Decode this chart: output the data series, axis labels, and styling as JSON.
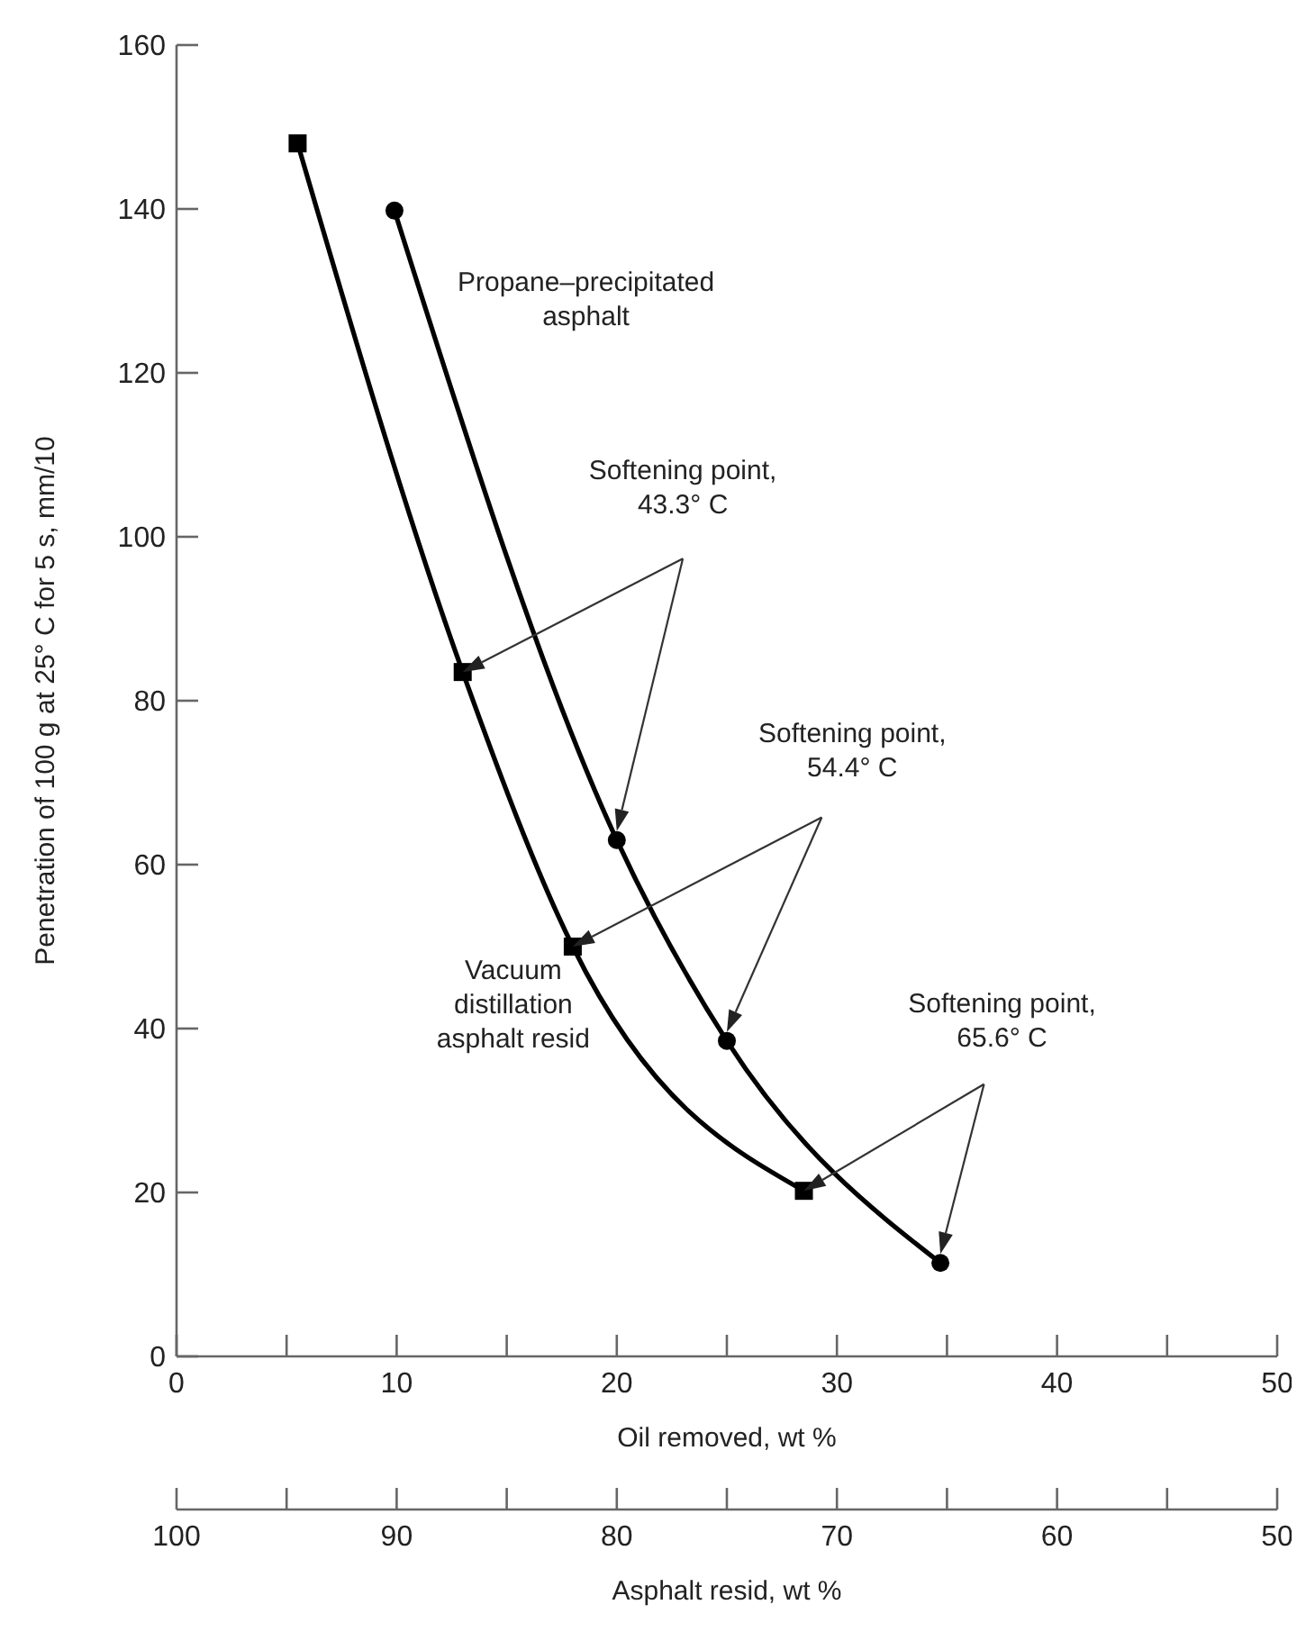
{
  "chart_data": {
    "type": "line",
    "xlabel": "Oil removed, wt %",
    "ylabel": "Penetration of 100 g at 25° C for 5 s, mm/10",
    "x2label": "Asphalt resid, wt %",
    "xlim": [
      0,
      50
    ],
    "xticks": [
      0,
      {
        "value": 5,
        "label": null
      },
      10,
      {
        "value": 15,
        "label": null
      },
      20,
      {
        "value": 25,
        "label": null
      },
      30,
      {
        "value": 35,
        "label": null
      },
      40,
      {
        "value": 45,
        "label": null
      },
      50
    ],
    "x2lim": [
      100,
      50
    ],
    "x2ticks": [
      100,
      {
        "value": 95,
        "label": null
      },
      90,
      {
        "value": 85,
        "label": null
      },
      80,
      {
        "value": 75,
        "label": null
      },
      70,
      {
        "value": 65,
        "label": null
      },
      60,
      {
        "value": 55,
        "label": null
      },
      50
    ],
    "ylim": [
      0,
      160
    ],
    "yticks": [
      0,
      20,
      40,
      60,
      80,
      100,
      120,
      140,
      160
    ],
    "grid": false,
    "line_style": "solid",
    "series": [
      {
        "name": "Propane–precipitated asphalt",
        "color": "#000000",
        "marker": "circle",
        "x": [
          9.9,
          20,
          25,
          34.7
        ],
        "values": [
          139.8,
          63,
          38.5,
          11.4
        ]
      },
      {
        "name": "Vacuum distillation asphalt resid",
        "color": "#000000",
        "marker": "square",
        "x": [
          5.5,
          13,
          18,
          28.5
        ],
        "values": [
          148,
          83.5,
          50,
          20.2
        ]
      }
    ],
    "annotations": [
      "Softening point, 43.3° C",
      "Softening point, 54.4° C",
      "Softening point, 65.6° C"
    ]
  }
}
